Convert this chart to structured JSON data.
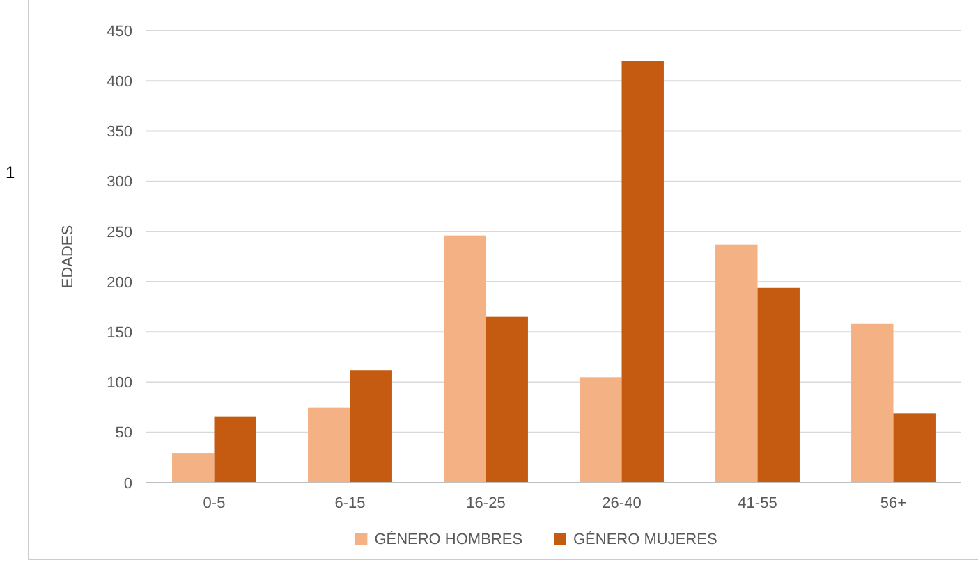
{
  "chart_data": {
    "type": "bar",
    "ylabel": "EDADES",
    "categories": [
      "0-5",
      "6-15",
      "16-25",
      "26-40",
      "41-55",
      "56+"
    ],
    "series": [
      {
        "name": "GÉNERO HOMBRES",
        "color": "#f4b183",
        "values": [
          29,
          75,
          246,
          105,
          237,
          158
        ]
      },
      {
        "name": "GÉNERO MUJERES",
        "color": "#c55a11",
        "values": [
          66,
          112,
          165,
          420,
          194,
          69
        ]
      }
    ],
    "ylim": [
      0,
      450
    ],
    "yticks": [
      0,
      50,
      100,
      150,
      200,
      250,
      300,
      350,
      400,
      450
    ],
    "grid": "y",
    "legend": "bottom",
    "annotations": [
      "1"
    ]
  }
}
